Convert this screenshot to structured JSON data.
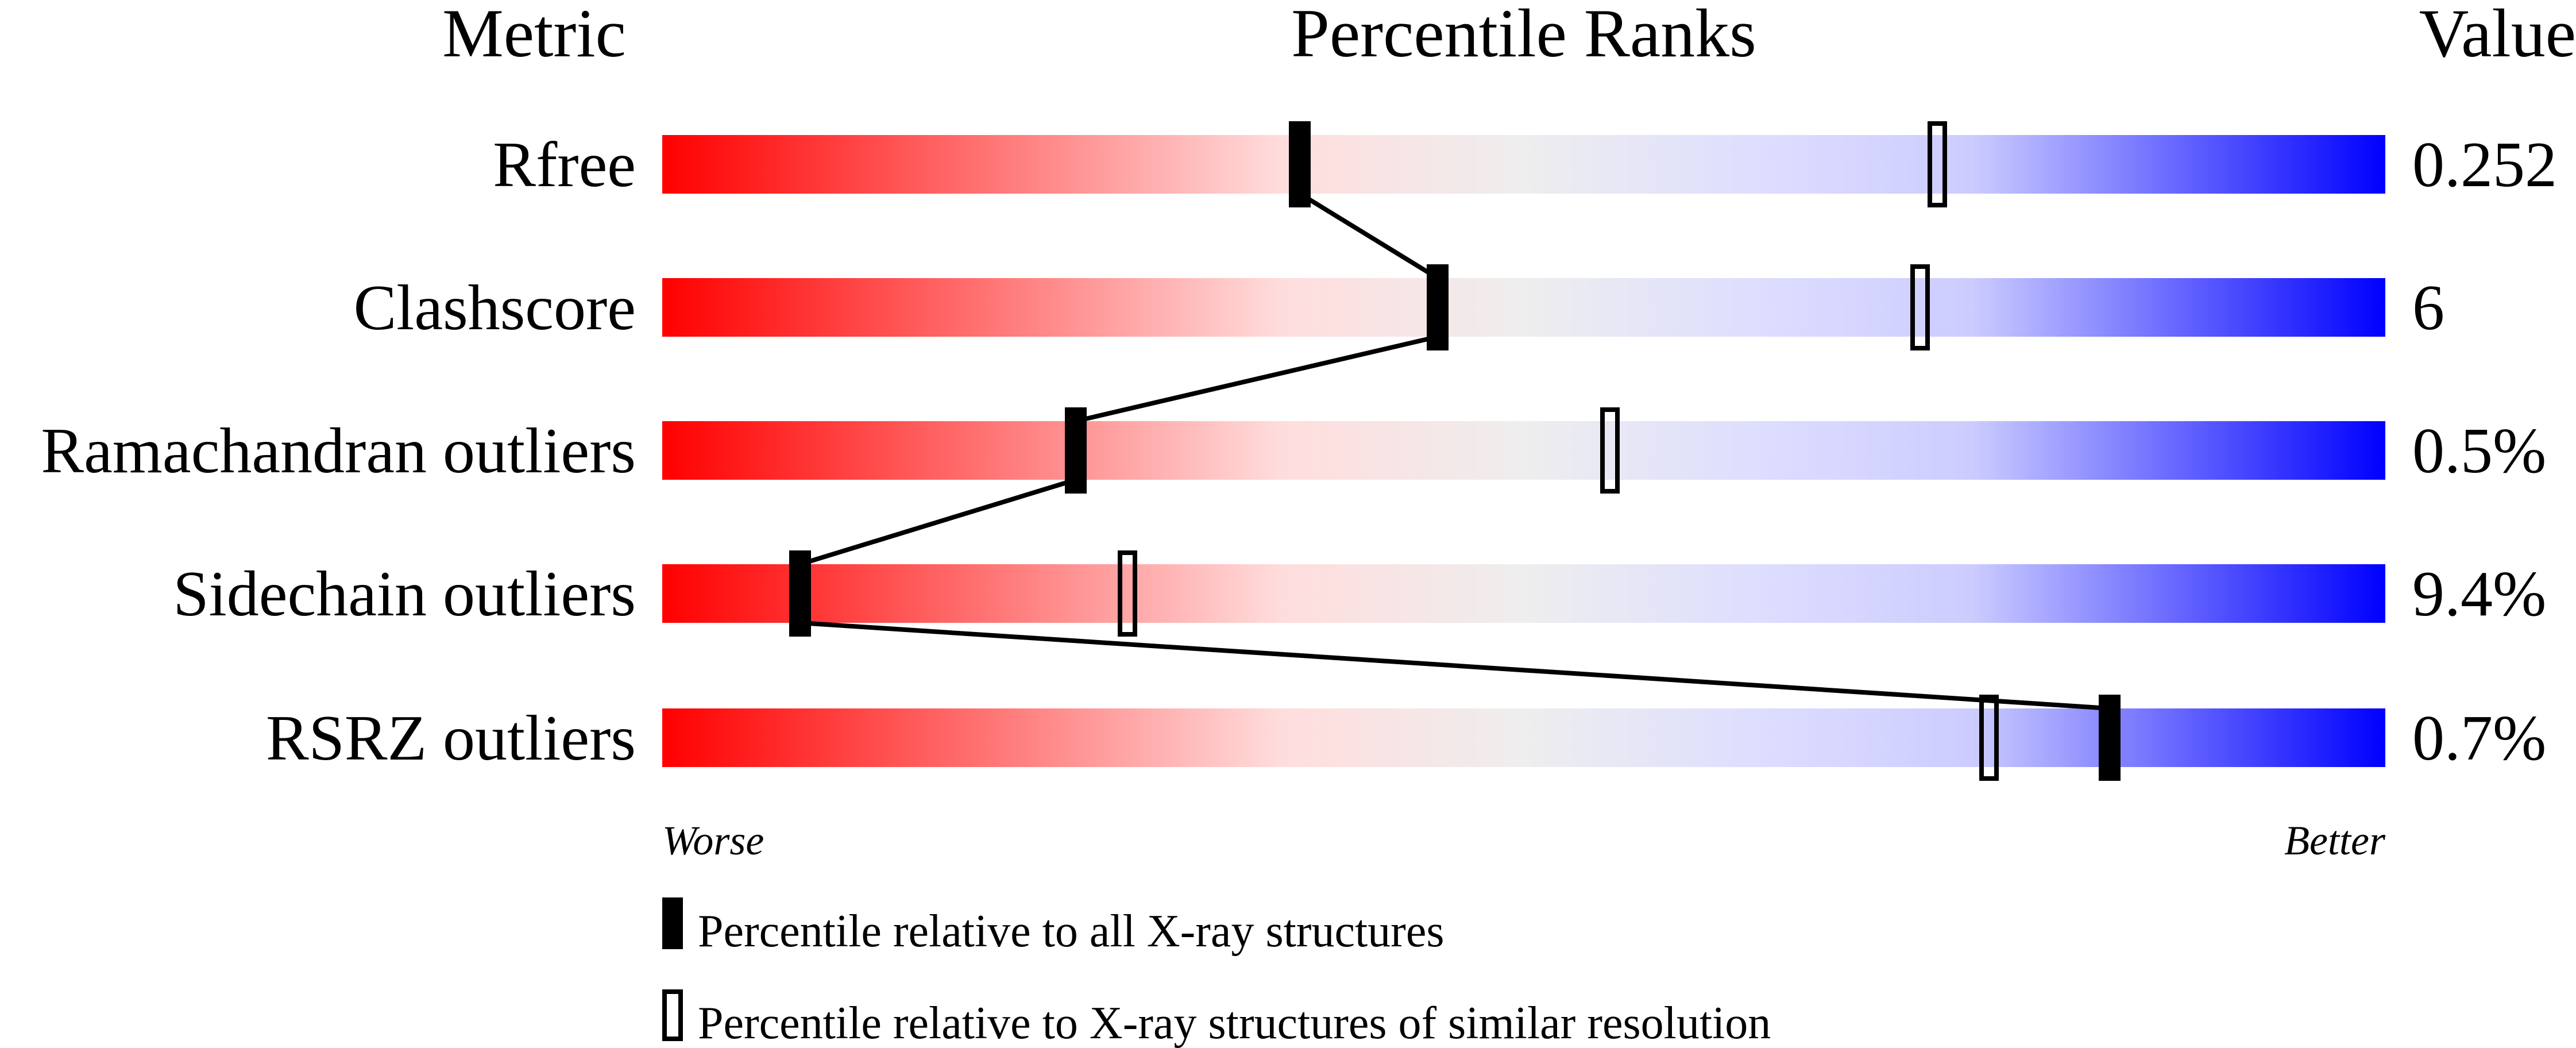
{
  "chart_data": {
    "type": "percentile-ranks",
    "headers": {
      "metric": "Metric",
      "title": "Percentile Ranks",
      "value": "Value"
    },
    "xlim": [
      0,
      100
    ],
    "axis_ends": {
      "left": "Worse",
      "right": "Better"
    },
    "gradient_colors": [
      "#ff0000",
      "#ffdddd",
      "#eeeeee",
      "#ddddff",
      "#ccccff",
      "#0000ff"
    ],
    "metrics": [
      {
        "name": "Rfree",
        "value": "0.252",
        "percentile_all": 37,
        "percentile_similar": 74
      },
      {
        "name": "Clashscore",
        "value": "6",
        "percentile_all": 45,
        "percentile_similar": 73
      },
      {
        "name": "Ramachandran outliers",
        "value": "0.5%",
        "percentile_all": 24,
        "percentile_similar": 55
      },
      {
        "name": "Sidechain outliers",
        "value": "9.4%",
        "percentile_all": 8,
        "percentile_similar": 27
      },
      {
        "name": "RSRZ outliers",
        "value": "0.7%",
        "percentile_all": 84,
        "percentile_similar": 77
      }
    ],
    "legend": [
      {
        "marker": "filled",
        "label": "Percentile relative to all X-ray structures"
      },
      {
        "marker": "open",
        "label": "Percentile relative to X-ray structures of similar resolution"
      }
    ]
  }
}
